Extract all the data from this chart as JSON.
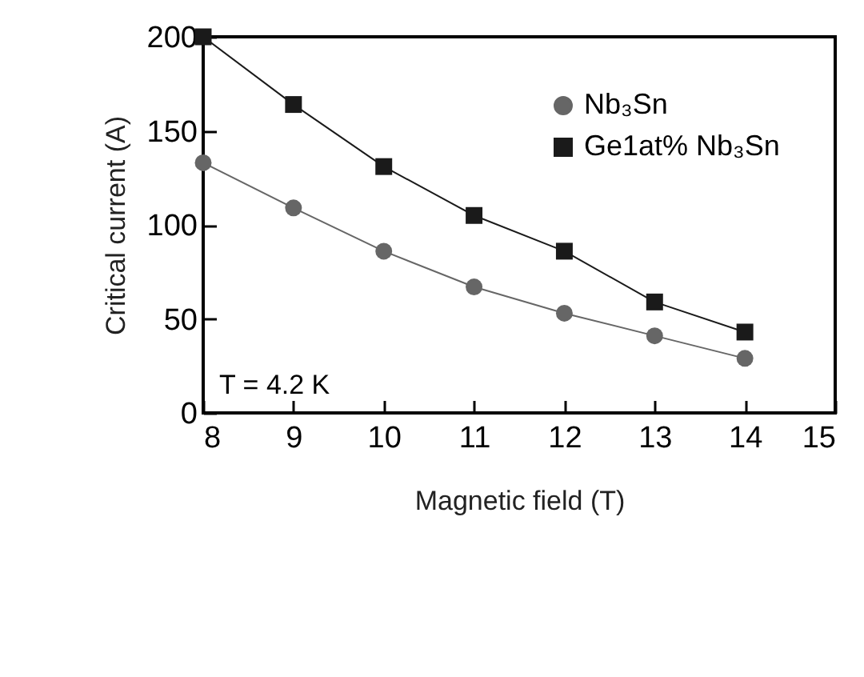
{
  "chart_data": {
    "type": "line",
    "xlabel": "Magnetic field (T)",
    "ylabel": "Critical current (A)",
    "x": [
      8,
      9,
      10,
      11,
      12,
      13,
      14
    ],
    "series": [
      {
        "name": "Nb₃Sn",
        "color": "#666666",
        "marker": "circle",
        "values": [
          133,
          109,
          86,
          67,
          53,
          41,
          29
        ]
      },
      {
        "name": "Ge1at% Nb₃Sn",
        "color": "#1a1a1a",
        "marker": "square",
        "values": [
          200,
          164,
          131,
          105,
          86,
          59,
          43
        ]
      }
    ],
    "xlim": [
      8,
      15
    ],
    "xticks": [
      8,
      9,
      10,
      11,
      12,
      13,
      14,
      15
    ],
    "ylim": [
      0,
      200
    ],
    "yticks": [
      0,
      50,
      100,
      150,
      200
    ],
    "grid": false,
    "legend": "top right",
    "line_style": "solid",
    "annotations": [
      "T = 4.2 K"
    ]
  }
}
